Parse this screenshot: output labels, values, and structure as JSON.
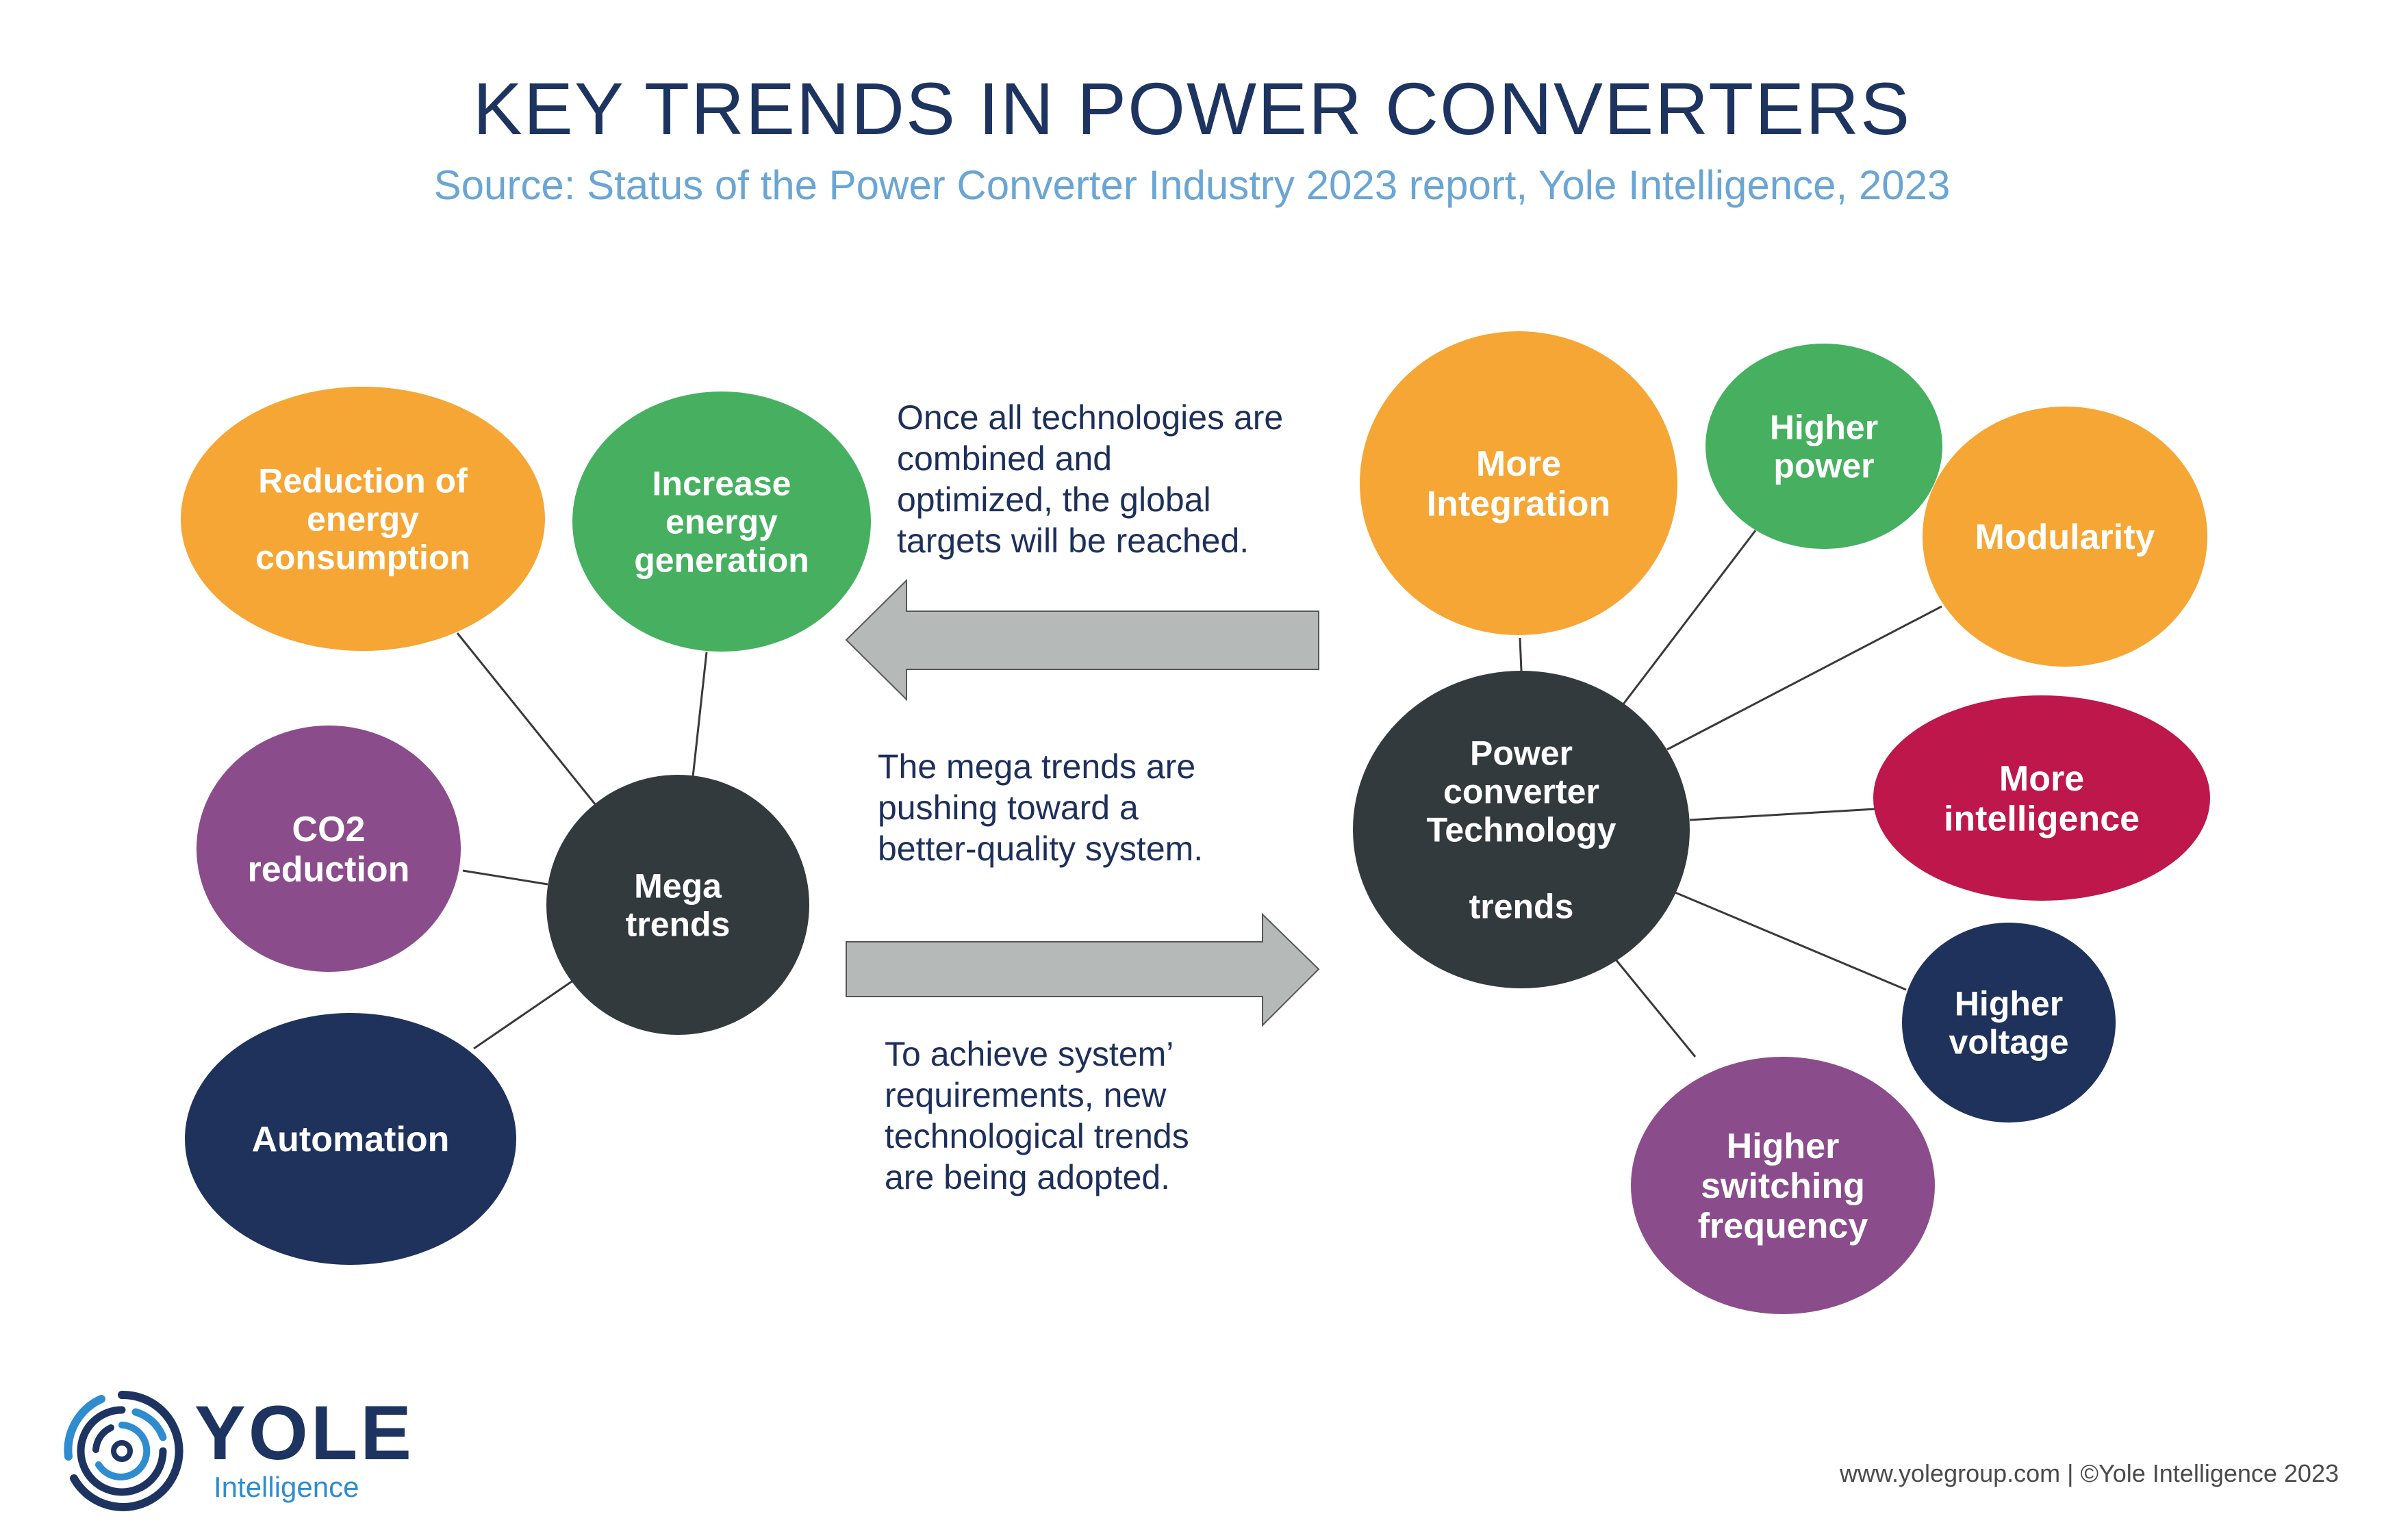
{
  "header": {
    "title": "KEY TRENDS IN POWER CONVERTERS",
    "subtitle": "Source:  Status of the Power Converter Industry 2023 report, Yole Intelligence, 2023"
  },
  "hubs": {
    "mega": {
      "lines": [
        "Mega",
        "trends"
      ],
      "color": "#333a3d"
    },
    "tech": {
      "lines": [
        "Power",
        "converter",
        "Technology",
        "",
        "trends"
      ],
      "color": "#333a3d"
    }
  },
  "mega_trends": [
    {
      "id": "reduction",
      "lines": [
        "Reduction of",
        "energy",
        "consumption"
      ],
      "color": "#f5a634"
    },
    {
      "id": "increase",
      "lines": [
        "Increase",
        "energy",
        "generation"
      ],
      "color": "#46b060"
    },
    {
      "id": "co2",
      "lines": [
        "CO2",
        "reduction"
      ],
      "color": "#8b4c8b"
    },
    {
      "id": "automation",
      "lines": [
        "Automation"
      ],
      "color": "#1e325c"
    }
  ],
  "tech_trends": [
    {
      "id": "integration",
      "lines": [
        "More",
        "Integration"
      ],
      "color": "#f5a634"
    },
    {
      "id": "higher-power",
      "lines": [
        "Higher",
        "power"
      ],
      "color": "#46b060"
    },
    {
      "id": "modularity",
      "lines": [
        "Modularity"
      ],
      "color": "#f5a634"
    },
    {
      "id": "intelligence",
      "lines": [
        "More",
        "intelligence"
      ],
      "color": "#bd174c"
    },
    {
      "id": "voltage",
      "lines": [
        "Higher",
        "voltage"
      ],
      "color": "#1e325c"
    },
    {
      "id": "switching",
      "lines": [
        "Higher",
        "switching",
        "frequency"
      ],
      "color": "#8b4c8b"
    }
  ],
  "notes": {
    "top": "Once all technologies are\ncombined and\noptimized, the global\ntargets will be reached.",
    "middle": "The mega trends are\npushing toward a\nbetter-quality system.",
    "bottom": "To achieve system’\nrequirements, new\ntechnological trends\nare being adopted."
  },
  "arrow_color": "#b5bab8",
  "logo": {
    "word": "YOLE",
    "sub": "Intelligence"
  },
  "footer": "www.yolegroup.com | ©Yole Intelligence 2023"
}
